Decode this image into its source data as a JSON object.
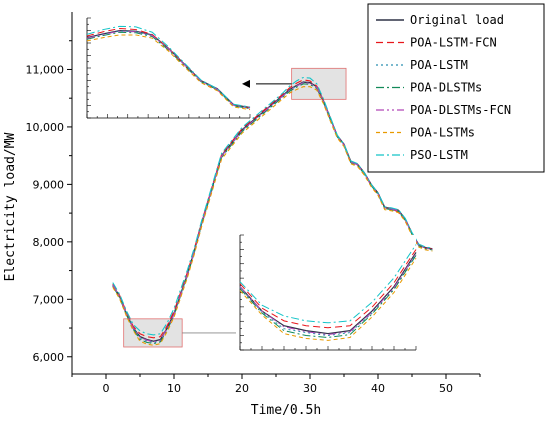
{
  "chart_data": {
    "type": "line",
    "xlabel": "Time/0.5h",
    "ylabel": "Electricity load/MW",
    "xlim": [
      -5,
      55
    ],
    "ylim": [
      5700,
      12000
    ],
    "xticks": [
      0,
      10,
      20,
      30,
      40,
      50
    ],
    "yticks": [
      6000,
      7000,
      8000,
      9000,
      10000,
      11000
    ],
    "ytick_labels": [
      "6,000",
      "7,000",
      "8,000",
      "9,000",
      "10,000",
      "11,000"
    ],
    "grid": false,
    "legend_position": "top-right",
    "x": [
      1,
      2,
      3,
      4,
      5,
      6,
      7,
      8,
      9,
      10,
      11,
      12,
      13,
      14,
      15,
      16,
      17,
      18,
      19,
      20,
      21,
      22,
      23,
      24,
      25,
      26,
      27,
      28,
      29,
      30,
      31,
      32,
      33,
      34,
      35,
      36,
      37,
      38,
      39,
      40,
      41,
      42,
      43,
      44,
      45,
      46,
      47,
      48
    ],
    "series": [
      {
        "name": "Original load",
        "color": "#2f3247",
        "dash": "none",
        "values": [
          7250,
          7050,
          6750,
          6500,
          6350,
          6300,
          6270,
          6300,
          6500,
          6750,
          7100,
          7450,
          7850,
          8300,
          8700,
          9100,
          9500,
          9650,
          9800,
          9950,
          10050,
          10150,
          10250,
          10350,
          10450,
          10550,
          10650,
          10720,
          10780,
          10770,
          10700,
          10450,
          10150,
          9850,
          9700,
          9400,
          9350,
          9200,
          9000,
          8850,
          8600,
          8580,
          8550,
          8400,
          8150,
          7950,
          7900,
          7880
        ]
      },
      {
        "name": "POA-LSTM-FCN",
        "color": "#e8161b",
        "dash": "7,4",
        "values": [
          7270,
          7070,
          6780,
          6530,
          6400,
          6350,
          6330,
          6350,
          6540,
          6790,
          7130,
          7480,
          7880,
          8320,
          8720,
          9120,
          9520,
          9670,
          9820,
          9970,
          10070,
          10170,
          10270,
          10370,
          10470,
          10570,
          10680,
          10760,
          10820,
          10800,
          10710,
          10450,
          10140,
          9840,
          9680,
          9390,
          9340,
          9180,
          8980,
          8830,
          8590,
          8570,
          8520,
          8380,
          8140,
          7940,
          7890,
          7870
        ]
      },
      {
        "name": "POA-LSTM",
        "color": "#2a8fb0",
        "dash": "2,3",
        "values": [
          7240,
          7040,
          6740,
          6490,
          6320,
          6280,
          6250,
          6280,
          6480,
          6730,
          7080,
          7430,
          7830,
          8280,
          8680,
          9080,
          9480,
          9630,
          9780,
          9930,
          10030,
          10130,
          10230,
          10330,
          10430,
          10530,
          10640,
          10710,
          10770,
          10760,
          10690,
          10440,
          10140,
          9840,
          9690,
          9390,
          9340,
          9190,
          8990,
          8840,
          8590,
          8570,
          8540,
          8390,
          8140,
          7940,
          7890,
          7870
        ]
      },
      {
        "name": "POA-DLSTMs",
        "color": "#138a59",
        "dash": "8,3,2,3",
        "values": [
          7230,
          7030,
          6730,
          6480,
          6300,
          6250,
          6230,
          6260,
          6470,
          6720,
          7070,
          7420,
          7820,
          8270,
          8670,
          9070,
          9470,
          9620,
          9770,
          9920,
          10020,
          10120,
          10220,
          10320,
          10420,
          10520,
          10620,
          10690,
          10750,
          10740,
          10670,
          10420,
          10120,
          9830,
          9680,
          9380,
          9330,
          9180,
          8980,
          8830,
          8580,
          8560,
          8530,
          8380,
          8130,
          7930,
          7880,
          7860
        ]
      },
      {
        "name": "POA-DLSTMs-FCN",
        "color": "#b247b8",
        "dash": "8,3,2,3,2,3",
        "values": [
          7250,
          7050,
          6750,
          6500,
          6340,
          6290,
          6260,
          6290,
          6490,
          6740,
          7090,
          7440,
          7840,
          8290,
          8690,
          9090,
          9490,
          9640,
          9790,
          9940,
          10040,
          10140,
          10240,
          10340,
          10440,
          10540,
          10640,
          10710,
          10770,
          10760,
          10690,
          10440,
          10140,
          9840,
          9690,
          9390,
          9340,
          9190,
          8990,
          8840,
          8590,
          8570,
          8540,
          8390,
          8140,
          7940,
          7890,
          7870
        ]
      },
      {
        "name": "POA-LSTMs",
        "color": "#e89a00",
        "dash": "4,3",
        "values": [
          7210,
          7010,
          6710,
          6460,
          6270,
          6220,
          6200,
          6230,
          6440,
          6690,
          7040,
          7390,
          7790,
          8240,
          8640,
          9040,
          9440,
          9590,
          9740,
          9890,
          9990,
          10090,
          10190,
          10290,
          10390,
          10490,
          10590,
          10650,
          10700,
          10700,
          10640,
          10400,
          10100,
          9810,
          9660,
          9360,
          9310,
          9160,
          8960,
          8810,
          8560,
          8540,
          8510,
          8360,
          8110,
          7910,
          7860,
          7840
        ]
      },
      {
        "name": "PSO-LSTM",
        "color": "#14c4c8",
        "dash": "8,3,2,3",
        "values": [
          7290,
          7090,
          6800,
          6560,
          6450,
          6400,
          6380,
          6400,
          6590,
          6840,
          7180,
          7520,
          7900,
          8340,
          8740,
          9140,
          9540,
          9690,
          9840,
          9990,
          10090,
          10190,
          10290,
          10390,
          10490,
          10590,
          10710,
          10800,
          10860,
          10850,
          10750,
          10480,
          10170,
          9860,
          9700,
          9410,
          9360,
          9200,
          9000,
          8850,
          8610,
          8590,
          8560,
          8410,
          8160,
          7960,
          7910,
          7890
        ]
      }
    ],
    "insets": [
      {
        "x_range": [
          27,
          37
        ]
      },
      {
        "x_range": [
          3,
          11
        ]
      }
    ]
  }
}
